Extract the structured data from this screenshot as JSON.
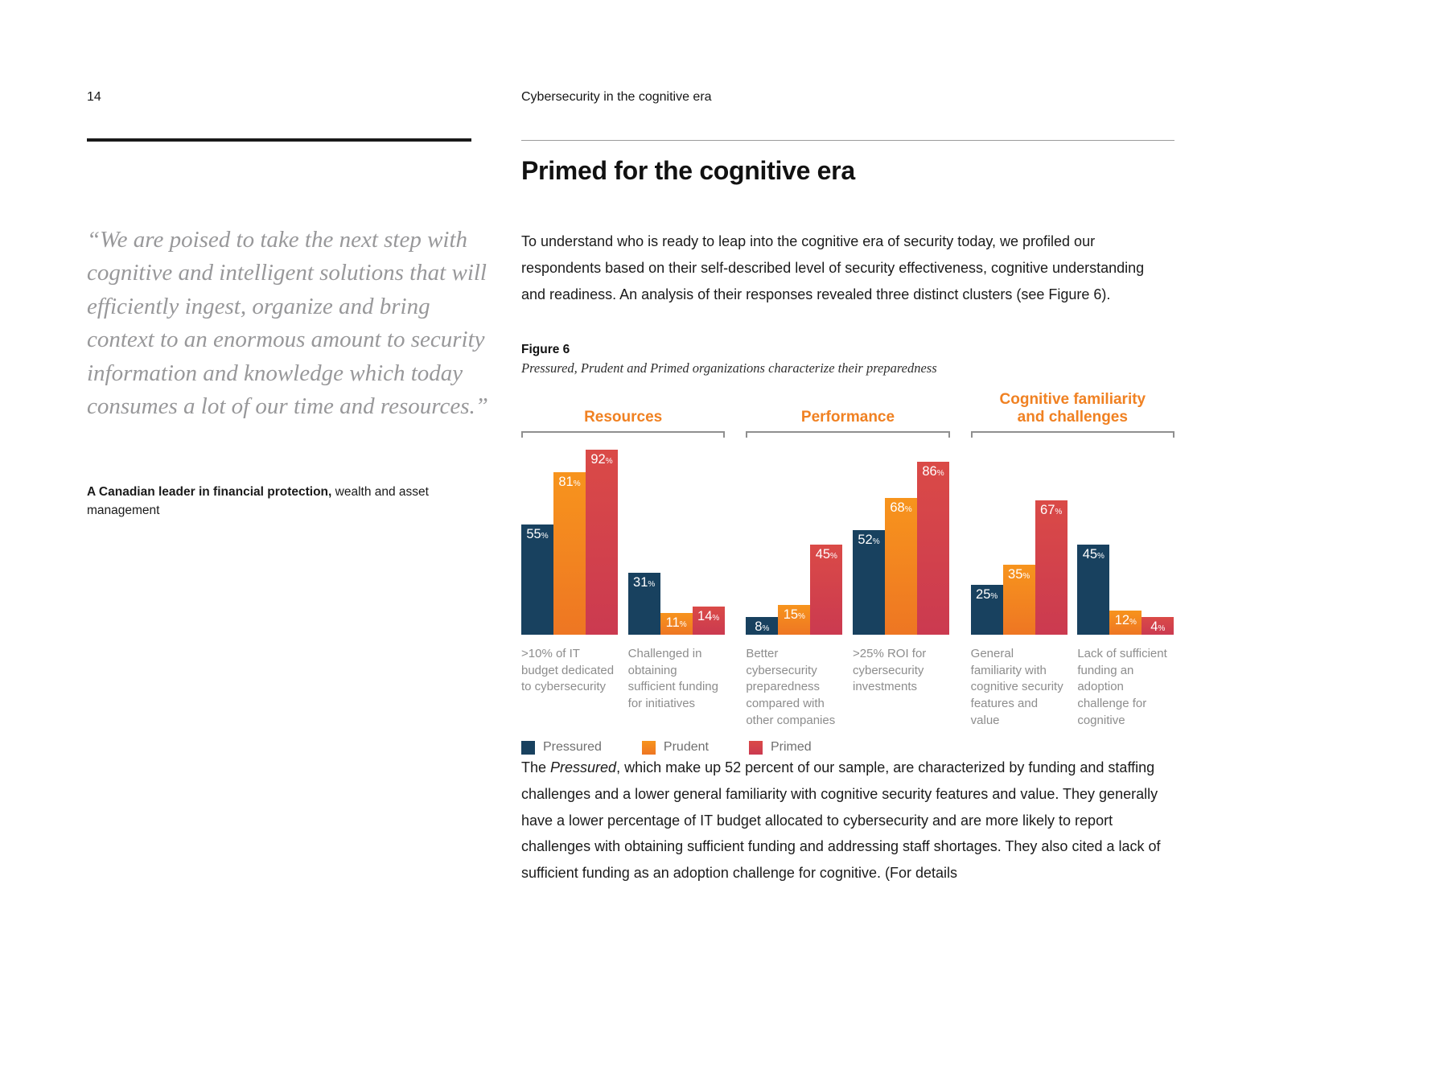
{
  "page": {
    "number": "14",
    "running_header": "Cybersecurity in the cognitive era"
  },
  "quote": {
    "text": "“We are poised to take the next step with cognitive and intelligent solutions that will efficiently ingest, organize and bring context to an enormous amount to security information and knowledge which today consumes a lot of our time and resources.”",
    "attribution_bold": "A Canadian leader in financial protection,",
    "attribution_rest": " wealth and asset management"
  },
  "article": {
    "title": "Primed for the cognitive era",
    "intro": "To understand who is ready to leap into the cognitive era of security today, we profiled our respondents based on their self-described level of security effectiveness, cognitive understanding and readiness. An analysis of their responses revealed three distinct clusters (see Figure 6).",
    "figure_label": "Figure 6",
    "figure_caption": "Pressured, Prudent and Primed organizations characterize their preparedness",
    "closing_prefix": "The ",
    "closing_italic": "Pressured",
    "closing_rest": ", which make up 52 percent of our sample, are characterized by funding and staffing challenges and a lower general familiarity with cognitive security features and value. They generally have a lower percentage of IT budget allocated to cybersecurity and are more likely to report challenges with obtaining sufficient funding and addressing staff shortages. They also cited a lack of sufficient funding as an adoption challenge for cognitive. (For details"
  },
  "chart_data": {
    "type": "bar",
    "ylim": [
      0,
      100
    ],
    "value_suffix": "%",
    "legend_position": "bottom",
    "groups": [
      {
        "label_lines": [
          "Resources"
        ],
        "category_indexes": [
          0,
          1
        ]
      },
      {
        "label_lines": [
          "Performance"
        ],
        "category_indexes": [
          2,
          3
        ]
      },
      {
        "label_lines": [
          "Cognitive familiarity",
          "and challenges"
        ],
        "category_indexes": [
          4,
          5
        ]
      }
    ],
    "categories": [
      ">10% of IT budget dedicated to cybersecurity",
      "Challenged in obtaining sufficient funding for initiatives",
      "Better cybersecurity preparedness compared with other companies",
      ">25% ROI for cybersecurity investments",
      "General familiarity with cognitive security features and value",
      "Lack of sufficient funding an adoption challenge for cognitive"
    ],
    "series": [
      {
        "name": "Pressured",
        "color": "#18415f",
        "color_bottom": "#18415f",
        "values": [
          55,
          31,
          8,
          52,
          25,
          45
        ]
      },
      {
        "name": "Prudent",
        "color": "#f7941d",
        "color_bottom": "#ee7623",
        "values": [
          81,
          11,
          15,
          68,
          35,
          12
        ]
      },
      {
        "name": "Primed",
        "color": "#da4a47",
        "color_bottom": "#cb3a50",
        "values": [
          92,
          14,
          45,
          86,
          67,
          4
        ]
      }
    ],
    "accent_color": "#f08122"
  }
}
